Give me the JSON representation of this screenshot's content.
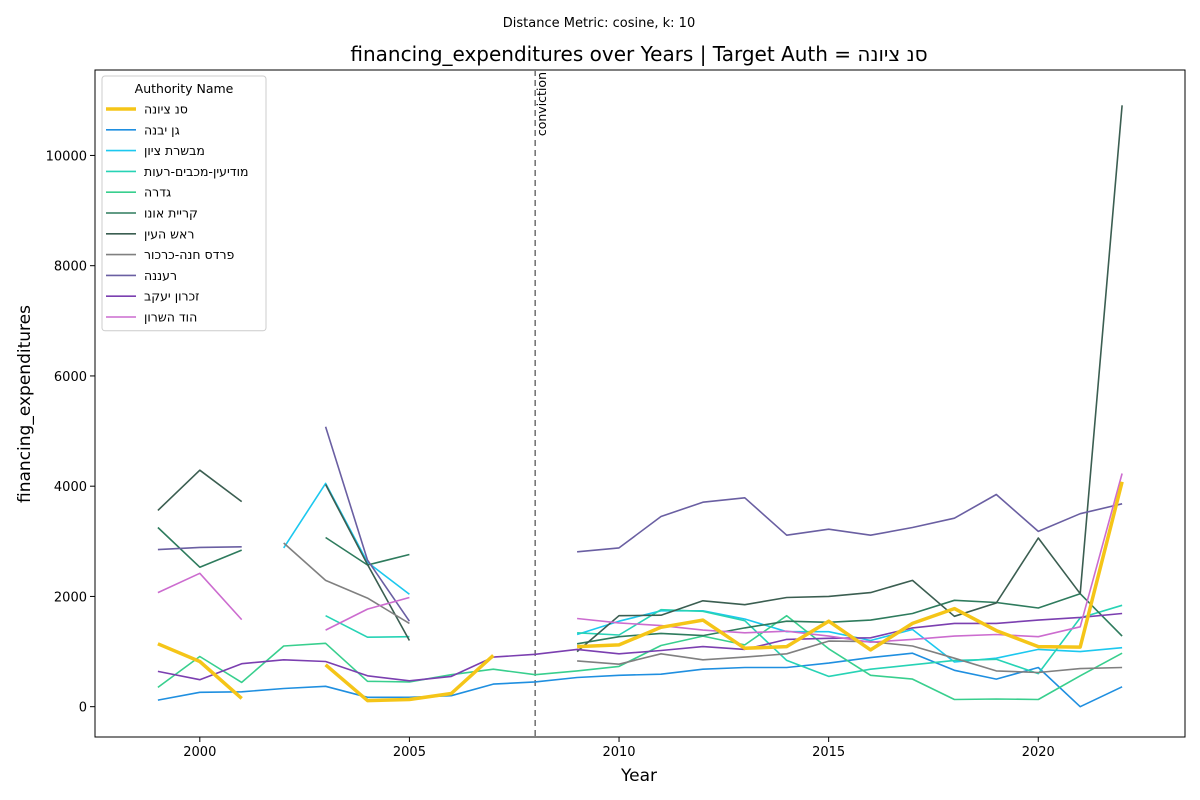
{
  "chart_data": {
    "type": "line",
    "suptitle": "Distance Metric: cosine, k: 10",
    "title": "financing_expenditures over Years | Target Auth = סנ ציונה",
    "xlabel": "Year",
    "ylabel": "financing_expenditures",
    "xlim": [
      1997.5,
      2023.5
    ],
    "ylim": [
      -550,
      11550
    ],
    "xticks": [
      2000,
      2005,
      2010,
      2015,
      2020
    ],
    "yticks": [
      0,
      2000,
      4000,
      6000,
      8000,
      10000
    ],
    "grid": false,
    "legend": {
      "title": "Authority Name",
      "position": "top-left"
    },
    "vline": {
      "x": 2008,
      "label": "conviction",
      "color": "#777777"
    },
    "x": [
      1999,
      2000,
      2001,
      2002,
      2003,
      2004,
      2005,
      2006,
      2007,
      2008,
      2009,
      2010,
      2011,
      2012,
      2013,
      2014,
      2015,
      2016,
      2017,
      2018,
      2019,
      2020,
      2021,
      2022
    ],
    "series": [
      {
        "name": "סנ ציונה",
        "color": "#f5c518",
        "width": 3.5,
        "values": [
          1140,
          820,
          150,
          null,
          760,
          110,
          130,
          240,
          930,
          null,
          1090,
          1120,
          1440,
          1570,
          1060,
          1090,
          1550,
          1030,
          1510,
          1780,
          1380,
          1090,
          1080,
          4080
        ]
      },
      {
        "name": "גן יבנה",
        "color": "#1f8fe0",
        "width": 1.6,
        "values": [
          120,
          260,
          270,
          330,
          370,
          170,
          170,
          200,
          410,
          450,
          530,
          570,
          590,
          680,
          710,
          710,
          790,
          890,
          970,
          660,
          500,
          710,
          0,
          360
        ]
      },
      {
        "name": "מבשרת ציון",
        "color": "#1cc8ef",
        "width": 1.6,
        "values": [
          null,
          null,
          null,
          2880,
          4050,
          2620,
          2040,
          null,
          null,
          null,
          1310,
          1550,
          1740,
          1740,
          1590,
          1360,
          1360,
          1200,
          1400,
          810,
          880,
          1040,
          1000,
          1070
        ]
      },
      {
        "name": "מודיעין-מכבים-רעות",
        "color": "#27d3b5",
        "width": 1.6,
        "values": [
          null,
          null,
          null,
          null,
          1650,
          1260,
          1270,
          null,
          null,
          null,
          1340,
          1300,
          1760,
          1730,
          1560,
          840,
          550,
          680,
          760,
          840,
          860,
          600,
          1610,
          1840
        ]
      },
      {
        "name": "גדרה",
        "color": "#38cf8e",
        "width": 1.6,
        "values": [
          350,
          910,
          440,
          1100,
          1150,
          460,
          450,
          580,
          680,
          580,
          650,
          730,
          1110,
          1280,
          1120,
          1650,
          1050,
          570,
          500,
          130,
          140,
          130,
          560,
          970
        ]
      },
      {
        "name": "קריית אונו",
        "color": "#2e7b5d",
        "width": 1.6,
        "values": [
          3250,
          2530,
          2840,
          null,
          3070,
          2570,
          2760,
          null,
          null,
          null,
          1140,
          1270,
          1330,
          1290,
          1430,
          1550,
          1530,
          1570,
          1690,
          1930,
          1890,
          1790,
          2050,
          1280
        ]
      },
      {
        "name": "ראש העין",
        "color": "#3b5e51",
        "width": 1.6,
        "values": [
          3560,
          4290,
          3720,
          null,
          4030,
          2580,
          1200,
          null,
          null,
          null,
          1000,
          1650,
          1660,
          1920,
          1850,
          1980,
          2000,
          2070,
          2290,
          1640,
          1880,
          3060,
          2050,
          10910
        ]
      },
      {
        "name": "פרדס חנה-כרכור",
        "color": "#808080",
        "width": 1.6,
        "values": [
          null,
          null,
          null,
          2970,
          2290,
          1970,
          1510,
          null,
          null,
          null,
          830,
          770,
          960,
          850,
          900,
          960,
          1190,
          1180,
          1100,
          880,
          650,
          620,
          690,
          710
        ]
      },
      {
        "name": "רעננה",
        "color": "#6a5fa2",
        "width": 1.6,
        "values": [
          2850,
          2890,
          2900,
          null,
          5080,
          2660,
          1550,
          null,
          null,
          null,
          2810,
          2880,
          3450,
          3710,
          3790,
          3110,
          3220,
          3110,
          3250,
          3420,
          3850,
          3180,
          3500,
          3680
        ]
      },
      {
        "name": "זכרון יעקב",
        "color": "#7b3fb0",
        "width": 1.6,
        "values": [
          640,
          490,
          780,
          850,
          820,
          560,
          470,
          550,
          900,
          950,
          1040,
          960,
          1020,
          1090,
          1040,
          1220,
          1240,
          1250,
          1430,
          1510,
          1510,
          1570,
          1620,
          1690
        ]
      },
      {
        "name": "הוד השרון",
        "color": "#cc6ccf",
        "width": 1.6,
        "values": [
          2070,
          2420,
          1580,
          null,
          1390,
          1770,
          1980,
          null,
          null,
          null,
          1600,
          1520,
          1470,
          1390,
          1340,
          1370,
          1280,
          1170,
          1220,
          1280,
          1310,
          1270,
          1450,
          4230
        ]
      }
    ]
  }
}
